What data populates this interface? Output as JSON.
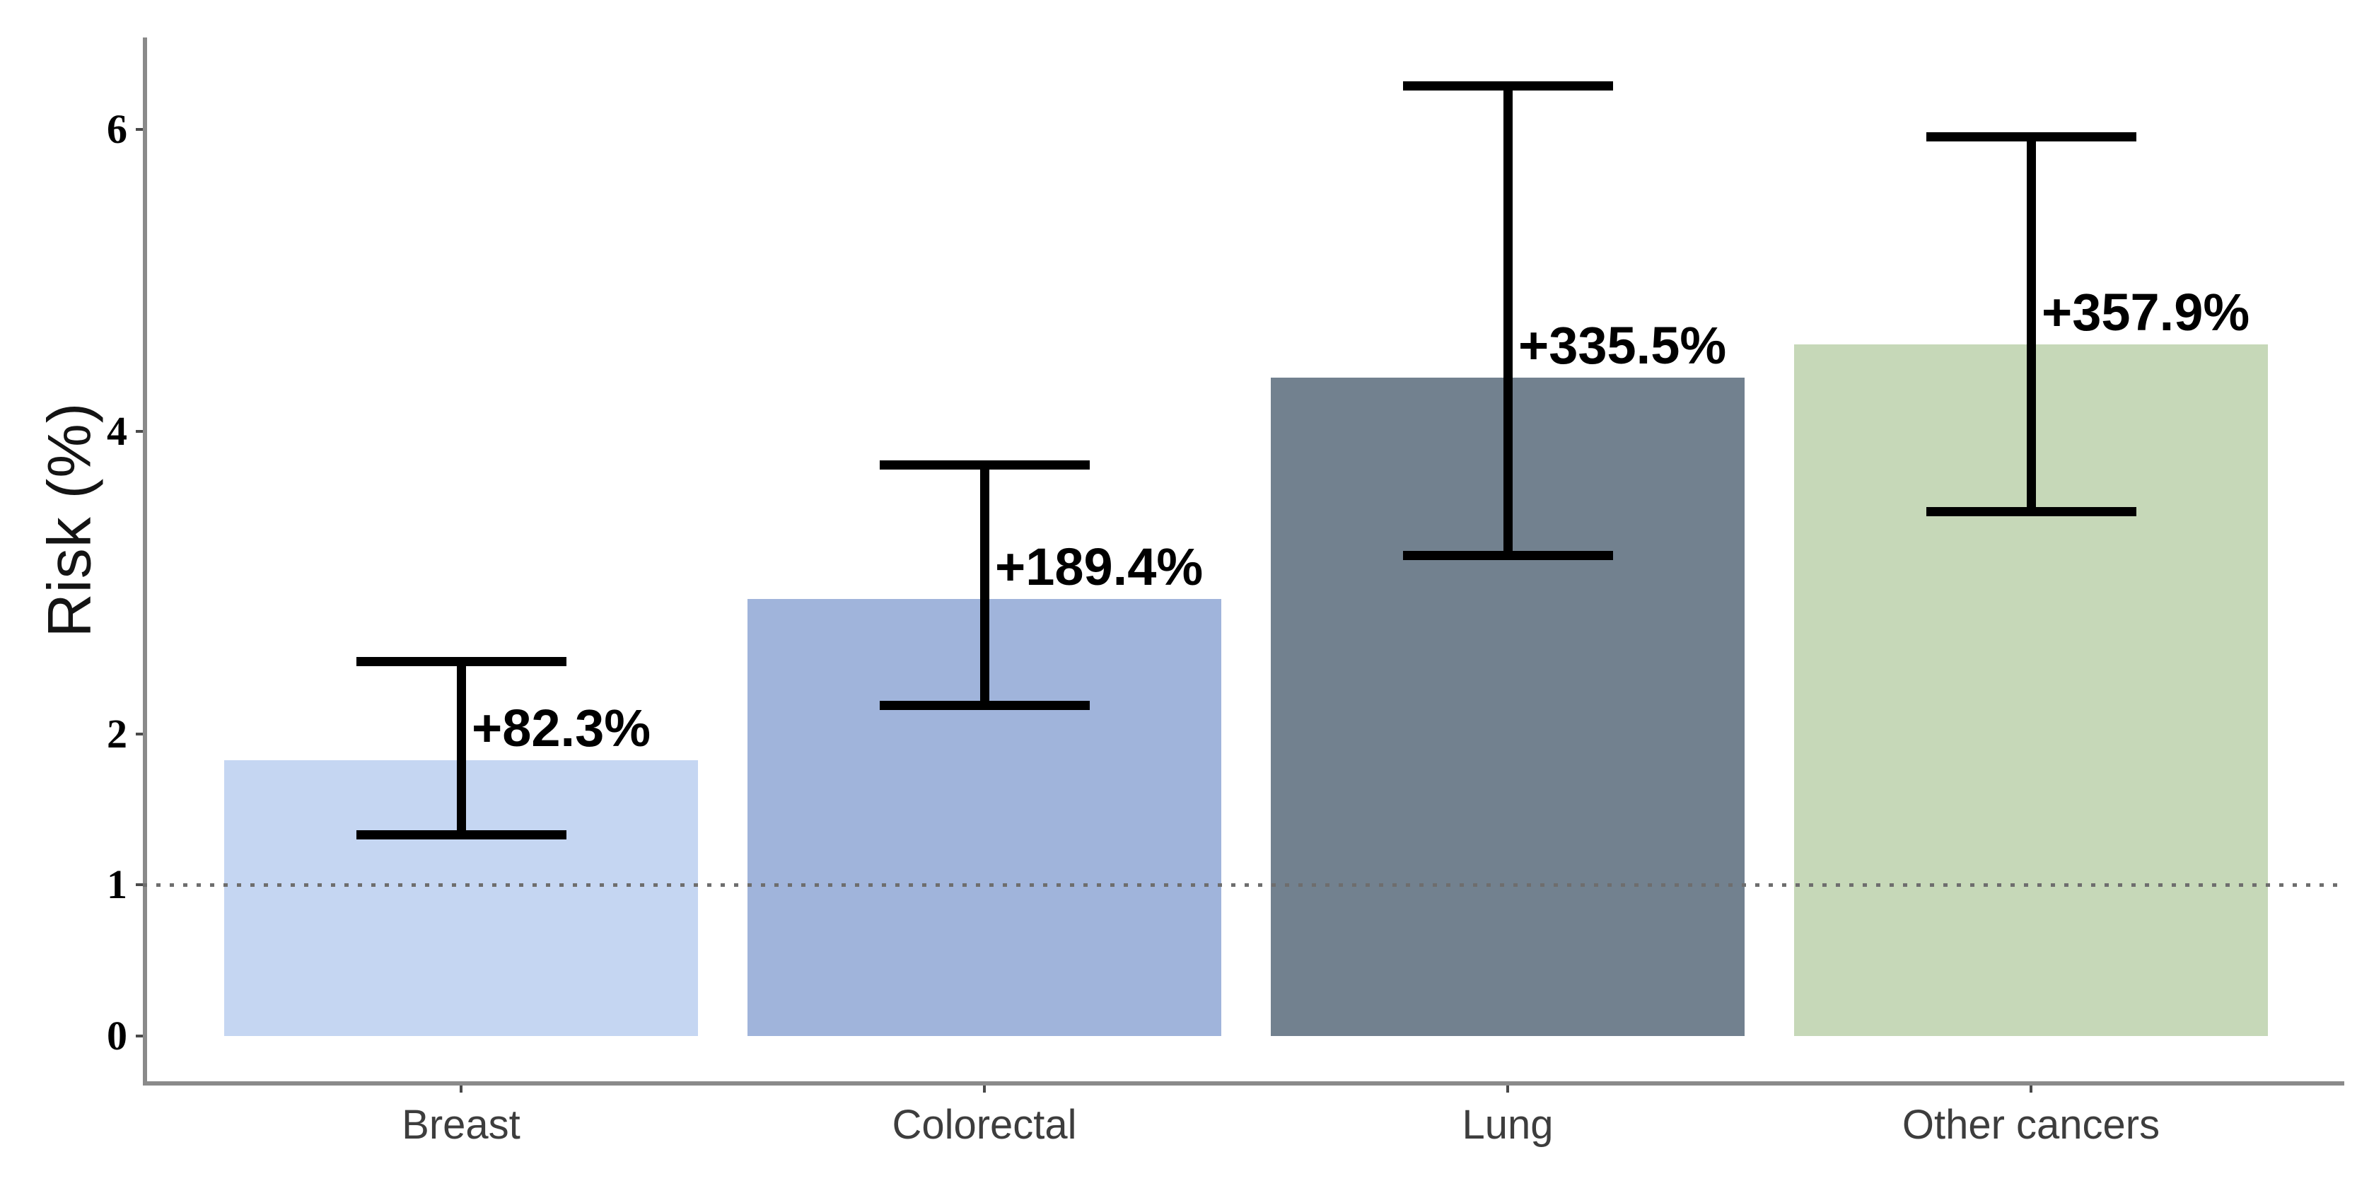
{
  "chart_data": {
    "type": "bar",
    "title": "",
    "xlabel": "",
    "ylabel": "Risk (%)",
    "categories": [
      "Breast",
      "Colorectal",
      "Lung",
      "Other cancers"
    ],
    "values": [
      1.823,
      2.894,
      4.355,
      4.579
    ],
    "value_labels": [
      "+82.3%",
      "+189.4%",
      "+335.5%",
      "+357.9%"
    ],
    "error_low": [
      1.33,
      2.19,
      3.18,
      3.47
    ],
    "error_high": [
      2.48,
      3.78,
      6.29,
      5.95
    ],
    "bar_colors": [
      "#c5d6f2",
      "#a0b4db",
      "#72818f",
      "#c6d8b8"
    ],
    "error_bar_color": "#000000",
    "axis_color": "#8a8a8a",
    "reference_line": 1,
    "reference_line_style": "dotted",
    "y_ticks": [
      0,
      1,
      2,
      4,
      6
    ],
    "ylim": [
      0,
      6.6
    ],
    "grid": false,
    "legend": false
  }
}
